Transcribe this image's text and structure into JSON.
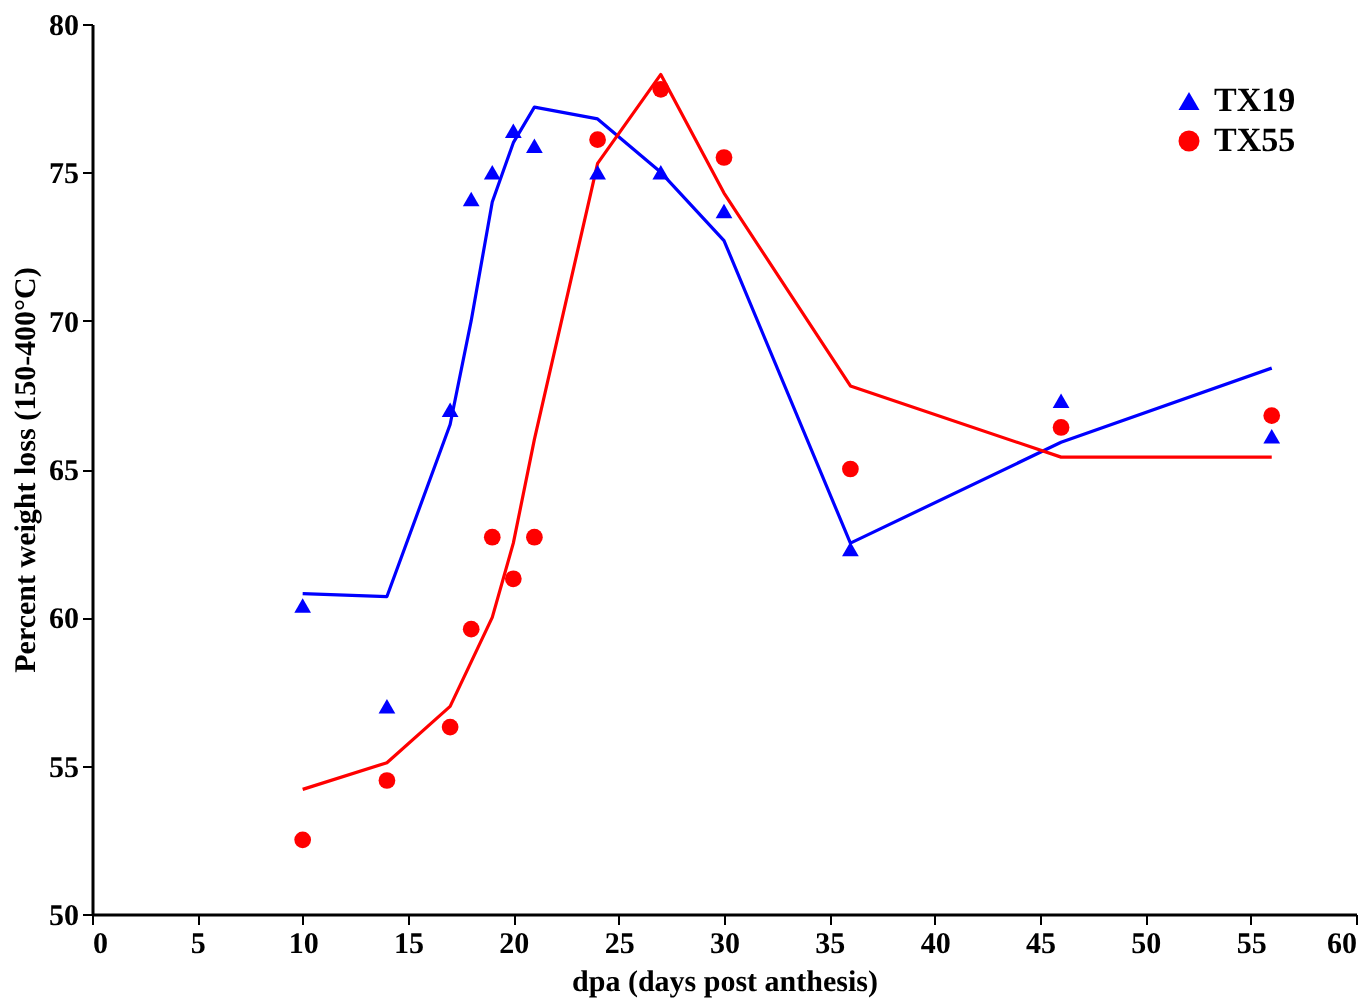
{
  "chart_data": {
    "type": "scatter",
    "xlabel": "dpa (days post anthesis)",
    "ylabel": "Percent weight loss (150-400°C)",
    "xlim": [
      0,
      60
    ],
    "xticks": [
      0,
      5,
      10,
      15,
      20,
      25,
      30,
      35,
      40,
      45,
      50,
      55,
      60
    ],
    "ylim": [
      50,
      80
    ],
    "yticks": [
      50,
      55,
      60,
      65,
      70,
      75,
      80
    ],
    "grid": false,
    "legend": "top right",
    "series": [
      {
        "name": "TX19",
        "marker": "triangle",
        "color": "#0000ff",
        "x": [
          10,
          14,
          17,
          18,
          19,
          20,
          21,
          24,
          27,
          30,
          36,
          46,
          56
        ],
        "values": [
          60.4,
          57.0,
          67.0,
          74.1,
          75.0,
          76.4,
          75.9,
          75.0,
          75.0,
          73.7,
          62.3,
          67.3,
          66.1
        ]
      },
      {
        "name": "TX55",
        "marker": "circle",
        "color": "#ff0000",
        "x": [
          10,
          14,
          17,
          18,
          19,
          20,
          21,
          24,
          27,
          30,
          36,
          46,
          56
        ],
        "values": [
          52.5,
          54.5,
          56.3,
          59.6,
          62.7,
          61.3,
          62.7,
          76.1,
          77.8,
          75.5,
          65.0,
          66.4,
          66.8
        ]
      },
      {
        "type": "line",
        "line_style": "solid",
        "color": "#0000ff",
        "x": [
          10,
          14,
          17,
          18,
          19,
          20,
          21,
          24,
          27,
          30,
          36,
          46,
          56
        ],
        "values": [
          60.8,
          60.7,
          66.5,
          70.0,
          74.0,
          76.0,
          77.2,
          76.8,
          75.0,
          72.7,
          62.5,
          65.9,
          68.4
        ]
      },
      {
        "type": "line",
        "line_style": "solid",
        "color": "#ff0000",
        "x": [
          10,
          14,
          17,
          18,
          19,
          20,
          21,
          24,
          27,
          30,
          36,
          46,
          56
        ],
        "values": [
          54.2,
          55.1,
          57.0,
          58.5,
          60.0,
          62.5,
          66.0,
          75.3,
          78.3,
          74.3,
          67.8,
          65.4,
          65.4
        ]
      }
    ]
  }
}
